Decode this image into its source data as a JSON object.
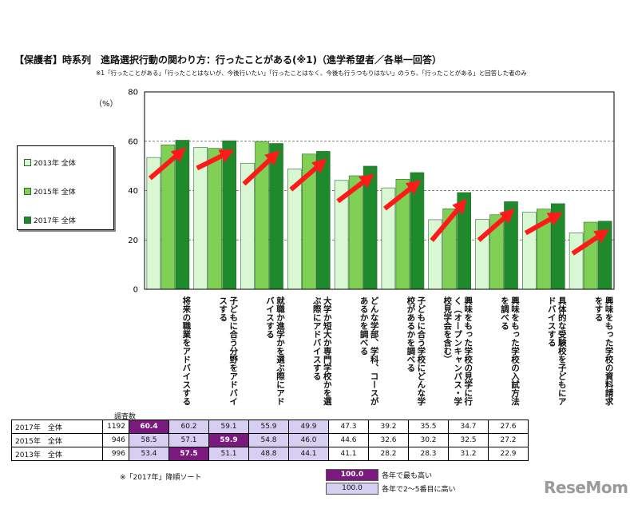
{
  "title": "【保護者】時系列　進路選択行動の関わり方：行ったことがある(※1)（進学希望者／各単一回答）",
  "note": "※1「行ったことがある」「行ったことはないが、今後行いたい」「行ったことはなく、今後も行うつもりはない」のうち、「行ったことがある」と回答した者のみ",
  "n_header": "調査数",
  "sort_note": "※「2017年」降順ソート",
  "legend_key": {
    "top_sample": "100.0",
    "top_label": "各年で最も高い",
    "hi_sample": "100.0",
    "hi_label": "各年で2～5番目に高い"
  },
  "logo": "ReseMom",
  "colors": {
    "s2013": "#d9f7d3",
    "s2015": "#7fd055",
    "s2017": "#1f8a2c",
    "arrow": "#ff1a1a",
    "top": "#7b1a7e",
    "hi": "#d7cff2"
  },
  "chart_data": {
    "type": "bar",
    "ylabel": "（%）",
    "ylim": [
      0,
      80
    ],
    "yticks": [
      0,
      20,
      40,
      60,
      80
    ],
    "grid": "dashed-horizontal",
    "legend_position": "left",
    "categories": [
      "将来の職業をアドバイスする",
      "子どもに合う分野をアドバイスする",
      "就職か進学かを選ぶ際にアドバイスする",
      "大学か短大か専門学校かを選ぶ際にアドバイスする",
      "どんな学部、学科、コースがあるかを調べる",
      "子どもに合う学校にどんな学校があるかを調べる",
      "興味をもった学校の見学に行く（オープンキャンパス・学校見学会を含む）",
      "興味をもった学校の入試方法を調べる",
      "具体的な受験校を子どもにアドバイスする",
      "興味をもった学校の資料請求をする"
    ],
    "series": [
      {
        "name": "2013年 全体",
        "n": "996",
        "values": [
          53.4,
          57.5,
          51.1,
          48.8,
          44.1,
          41.1,
          28.2,
          28.3,
          31.2,
          22.9
        ]
      },
      {
        "name": "2015年 全体",
        "n": "946",
        "values": [
          58.5,
          57.1,
          59.9,
          54.8,
          46.0,
          44.6,
          32.6,
          30.2,
          32.5,
          27.2
        ]
      },
      {
        "name": "2017年 全体",
        "n": "1192",
        "values": [
          60.4,
          60.2,
          59.1,
          55.9,
          49.9,
          47.3,
          39.2,
          35.5,
          34.7,
          27.6
        ]
      }
    ],
    "table_rows": [
      {
        "label": "2017年　全体",
        "n": "1192",
        "cells": [
          "60.4",
          "60.2",
          "59.1",
          "55.9",
          "49.9",
          "47.3",
          "39.2",
          "35.5",
          "34.7",
          "27.6"
        ],
        "highlight": [
          "top",
          "hi",
          "hi",
          "hi",
          "hi",
          "",
          "",
          "",
          "",
          ""
        ]
      },
      {
        "label": "2015年　全体",
        "n": "946",
        "cells": [
          "58.5",
          "57.1",
          "59.9",
          "54.8",
          "46.0",
          "44.6",
          "32.6",
          "30.2",
          "32.5",
          "27.2"
        ],
        "highlight": [
          "hi",
          "hi",
          "top",
          "hi",
          "hi",
          "",
          "",
          "",
          "",
          ""
        ]
      },
      {
        "label": "2013年　全体",
        "n": "996",
        "cells": [
          "53.4",
          "57.5",
          "51.1",
          "48.8",
          "44.1",
          "41.1",
          "28.2",
          "28.3",
          "31.2",
          "22.9"
        ],
        "highlight": [
          "hi",
          "top",
          "hi",
          "hi",
          "hi",
          "",
          "",
          "",
          "",
          ""
        ]
      }
    ]
  }
}
